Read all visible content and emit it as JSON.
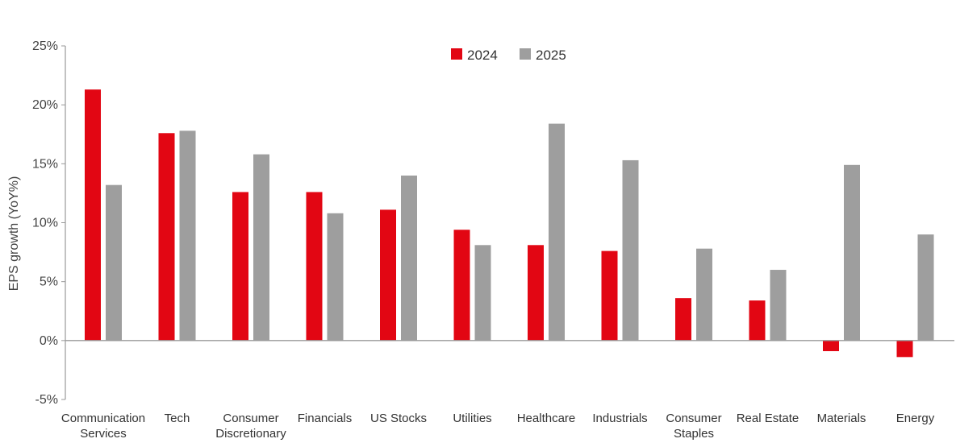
{
  "chart_data": {
    "type": "bar",
    "title": "",
    "xlabel": "",
    "ylabel": "EPS growth (YoY%)",
    "ylim": [
      -5,
      25
    ],
    "yticks": [
      -5,
      0,
      5,
      10,
      15,
      20,
      25
    ],
    "ytick_labels": [
      "-5%",
      "0%",
      "5%",
      "10%",
      "15%",
      "20%",
      "25%"
    ],
    "grid": false,
    "legend_position": "top-center",
    "categories": [
      "Communication Services",
      "Tech",
      "Consumer Discretionary",
      "Financials",
      "US Stocks",
      "Utilities",
      "Healthcare",
      "Industrials",
      "Consumer Staples",
      "Real Estate",
      "Materials",
      "Energy"
    ],
    "category_lines": [
      [
        "Communication",
        "Services"
      ],
      [
        "Tech"
      ],
      [
        "Consumer",
        "Discretionary"
      ],
      [
        "Financials"
      ],
      [
        "US Stocks"
      ],
      [
        "Utilities"
      ],
      [
        "Healthcare"
      ],
      [
        "Industrials"
      ],
      [
        "Consumer",
        "Staples"
      ],
      [
        "Real Estate"
      ],
      [
        "Materials"
      ],
      [
        "Energy"
      ]
    ],
    "series": [
      {
        "name": "2024",
        "color": "#e20613",
        "values": [
          21.3,
          17.6,
          12.6,
          12.6,
          11.1,
          9.4,
          8.1,
          7.6,
          3.6,
          3.4,
          -0.9,
          -1.4
        ]
      },
      {
        "name": "2025",
        "color": "#9e9e9e",
        "values": [
          13.2,
          17.8,
          15.8,
          10.8,
          14.0,
          8.1,
          18.4,
          15.3,
          7.8,
          6.0,
          14.9,
          9.0
        ]
      }
    ],
    "axis_color": "#999999"
  }
}
